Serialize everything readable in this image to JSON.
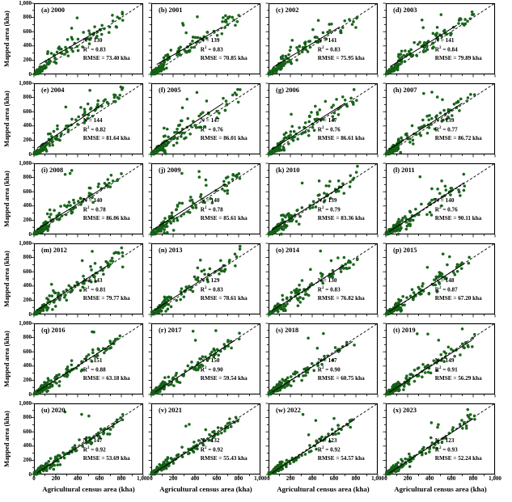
{
  "chart_data": {
    "type": "scatter",
    "layout": "grid 4 columns x 6 rows, one panel per year 2000-2023",
    "x_label": "Agricultural census area (kha)",
    "y_label": "Mapped area (kha)",
    "xlim": [
      0,
      1000
    ],
    "ylim": [
      0,
      1000
    ],
    "x_tick_labels": [
      "0",
      "200",
      "400",
      "600",
      "800",
      "1,000"
    ],
    "y_tick_labels": [
      "0",
      "200",
      "400",
      "600",
      "800",
      "1,000"
    ],
    "major_tick_step": 200,
    "minor_tick_step": 100,
    "reference_line": "dashed 1:1 diagonal from (0,0) to (1000,1000) in every panel",
    "fit_line": "solid linear regression line per panel, endpoints in data units [x1,y1,x2,y2]",
    "point_color": "#186a18",
    "point_edge_color": "#0c4a10",
    "line_color": "#000000",
    "background_color": "#ffffff",
    "panels": [
      {
        "label": "(a)",
        "year": "2000",
        "n": 130,
        "r2": "0.83",
        "rmse": "73.40",
        "rmse_units": "kha",
        "fit": [
          50,
          140,
          630,
          650
        ]
      },
      {
        "label": "(b)",
        "year": "2001",
        "n": 139,
        "r2": "0.83",
        "rmse": "70.85",
        "rmse_units": "kha",
        "fit": [
          50,
          140,
          650,
          665
        ]
      },
      {
        "label": "(c)",
        "year": "2002",
        "n": 141,
        "r2": "0.83",
        "rmse": "75.95",
        "rmse_units": "kha",
        "fit": [
          40,
          100,
          650,
          665
        ]
      },
      {
        "label": "(d)",
        "year": "2003",
        "n": 141,
        "r2": "0.84",
        "rmse": "79.89",
        "rmse_units": "kha",
        "fit": [
          40,
          110,
          650,
          690
        ]
      },
      {
        "label": "(e)",
        "year": "2004",
        "n": 144,
        "r2": "0.82",
        "rmse": "81.64",
        "rmse_units": "kha",
        "fit": [
          30,
          90,
          640,
          720
        ]
      },
      {
        "label": "(f)",
        "year": "2005",
        "n": 147,
        "r2": "0.76",
        "rmse": "86.01",
        "rmse_units": "kha",
        "fit": [
          30,
          80,
          660,
          720
        ]
      },
      {
        "label": "(g)",
        "year": "2006",
        "n": 147,
        "r2": "0.76",
        "rmse": "86.61",
        "rmse_units": "kha",
        "fit": [
          30,
          70,
          700,
          720
        ]
      },
      {
        "label": "(h)",
        "year": "2007",
        "n": 139,
        "r2": "0.77",
        "rmse": "86.72",
        "rmse_units": "kha",
        "fit": [
          30,
          70,
          700,
          720
        ]
      },
      {
        "label": "(i)",
        "year": "2008",
        "n": 140,
        "r2": "0.78",
        "rmse": "86.06",
        "rmse_units": "kha",
        "fit": [
          30,
          70,
          680,
          700
        ]
      },
      {
        "label": "(j)",
        "year": "2009",
        "n": 140,
        "r2": "0.78",
        "rmse": "85.61",
        "rmse_units": "kha",
        "fit": [
          30,
          80,
          680,
          710
        ]
      },
      {
        "label": "(k)",
        "year": "2010",
        "n": 139,
        "r2": "0.79",
        "rmse": "83.36",
        "rmse_units": "kha",
        "fit": [
          30,
          60,
          700,
          705
        ]
      },
      {
        "label": "(l)",
        "year": "2011",
        "n": 140,
        "r2": "0.76",
        "rmse": "90.11",
        "rmse_units": "kha",
        "fit": [
          30,
          40,
          720,
          730
        ]
      },
      {
        "label": "(m)",
        "year": "2012",
        "n": 143,
        "r2": "0.81",
        "rmse": "79.77",
        "rmse_units": "kha",
        "fit": [
          30,
          60,
          680,
          695
        ]
      },
      {
        "label": "(n)",
        "year": "2013",
        "n": 129,
        "r2": "0.83",
        "rmse": "78.61",
        "rmse_units": "kha",
        "fit": [
          30,
          60,
          680,
          700
        ]
      },
      {
        "label": "(o)",
        "year": "2014",
        "n": 130,
        "r2": "0.83",
        "rmse": "76.82",
        "rmse_units": "kha",
        "fit": [
          30,
          50,
          700,
          700
        ]
      },
      {
        "label": "(p)",
        "year": "2015",
        "n": 148,
        "r2": "0.87",
        "rmse": "67.20",
        "rmse_units": "kha",
        "fit": [
          30,
          40,
          720,
          715
        ]
      },
      {
        "label": "(q)",
        "year": "2016",
        "n": 151,
        "r2": "0.88",
        "rmse": "63.18",
        "rmse_units": "kha",
        "fit": [
          30,
          40,
          730,
          720
        ]
      },
      {
        "label": "(r)",
        "year": "2017",
        "n": 150,
        "r2": "0.90",
        "rmse": "59.54",
        "rmse_units": "kha",
        "fit": [
          30,
          30,
          770,
          765
        ]
      },
      {
        "label": "(s)",
        "year": "2018",
        "n": 147,
        "r2": "0.90",
        "rmse": "60.75",
        "rmse_units": "kha",
        "fit": [
          30,
          30,
          770,
          745
        ]
      },
      {
        "label": "(t)",
        "year": "2019",
        "n": 149,
        "r2": "0.91",
        "rmse": "56.29",
        "rmse_units": "kha",
        "fit": [
          30,
          30,
          790,
          765
        ]
      },
      {
        "label": "(u)",
        "year": "2020",
        "n": 147,
        "r2": "0.92",
        "rmse": "53.69",
        "rmse_units": "kha",
        "fit": [
          30,
          25,
          800,
          765
        ]
      },
      {
        "label": "(v)",
        "year": "2021",
        "n": 132,
        "r2": "0.92",
        "rmse": "55.43",
        "rmse_units": "kha",
        "fit": [
          30,
          25,
          810,
          785
        ]
      },
      {
        "label": "(w)",
        "year": "2022",
        "n": 123,
        "r2": "0.92",
        "rmse": "54.57",
        "rmse_units": "kha",
        "fit": [
          30,
          20,
          790,
          775
        ]
      },
      {
        "label": "(x)",
        "year": "2023",
        "n": 123,
        "r2": "0.93",
        "rmse": "52.24",
        "rmse_units": "kha",
        "fit": [
          30,
          20,
          800,
          785
        ]
      }
    ],
    "stats_text_format": {
      "n_prefix": "N = ",
      "r2_prefix": "R2 = ",
      "rmse_prefix": "RMSE = ",
      "rmse_suffix": " kha"
    }
  }
}
